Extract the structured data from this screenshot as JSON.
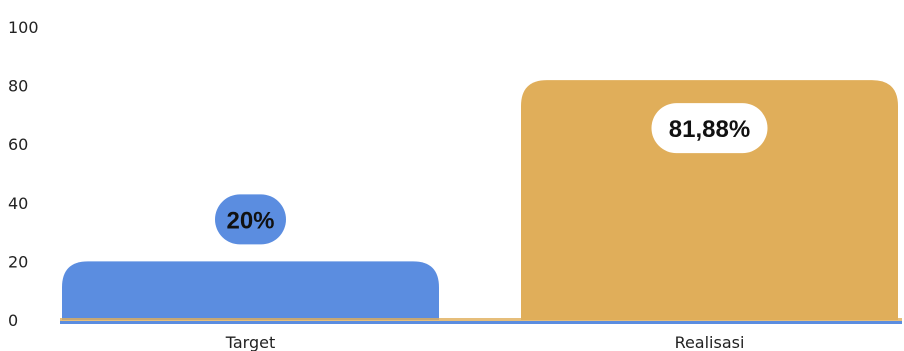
{
  "chart_data": {
    "type": "bar",
    "categories": [
      "Target",
      "Realisasi"
    ],
    "values": [
      20,
      81.88
    ],
    "data_labels": [
      "20%",
      "81,88%"
    ],
    "bar_colors": [
      "#5B8DE0",
      "#E0AE5A"
    ],
    "label_bg_colors": [
      "#5B8DE0",
      "#FFFFFF"
    ],
    "ylim": [
      0,
      100
    ],
    "yticks": [
      0,
      20,
      40,
      60,
      80,
      100
    ],
    "ytick_labels": [
      "0",
      "20",
      "40",
      "60",
      "80",
      "100"
    ],
    "grid": false,
    "legend": "none",
    "baseline_color": "#5B8DE0"
  }
}
